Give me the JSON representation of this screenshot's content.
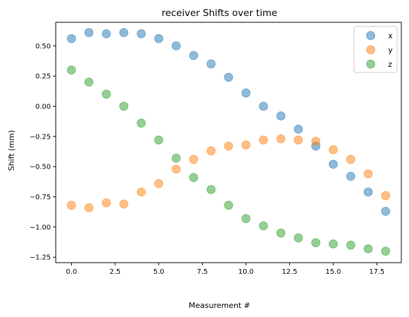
{
  "chart_data": {
    "type": "scatter",
    "title": "receiver Shifts over time",
    "xlabel": "Measurement #",
    "ylabel": "Shift (mm)",
    "xlim": [
      -0.9,
      18.9
    ],
    "ylim": [
      -1.295,
      0.695
    ],
    "xticks": [
      0,
      2.5,
      5,
      7.5,
      10,
      12.5,
      15,
      17.5
    ],
    "xtick_labels": [
      "0.0",
      "2.5",
      "5.0",
      "7.5",
      "10.0",
      "12.5",
      "15.0",
      "17.5"
    ],
    "yticks": [
      0.5,
      0.25,
      0,
      -0.25,
      -0.5,
      -0.75,
      -1.0,
      -1.25
    ],
    "ytick_labels": [
      "0.50",
      "0.25",
      "0.00",
      "−0.25",
      "−0.50",
      "−0.75",
      "−1.00",
      "−1.25"
    ],
    "grid": false,
    "legend_position": "top-right",
    "x": [
      0,
      1,
      2,
      3,
      4,
      5,
      6,
      7,
      8,
      9,
      10,
      11,
      12,
      13,
      14,
      15,
      16,
      17,
      18
    ],
    "series": [
      {
        "name": "x",
        "color": "#1f77b4",
        "values": [
          0.56,
          0.61,
          0.6,
          0.61,
          0.6,
          0.56,
          0.5,
          0.42,
          0.35,
          0.24,
          0.11,
          0.0,
          -0.08,
          -0.19,
          -0.33,
          -0.48,
          -0.58,
          -0.71,
          -0.87
        ]
      },
      {
        "name": "y",
        "color": "#ff7f0e",
        "values": [
          -0.82,
          -0.84,
          -0.8,
          -0.81,
          -0.71,
          -0.64,
          -0.52,
          -0.44,
          -0.37,
          -0.33,
          -0.32,
          -0.28,
          -0.27,
          -0.28,
          -0.29,
          -0.36,
          -0.44,
          -0.56,
          -0.74
        ]
      },
      {
        "name": "z",
        "color": "#2ca02c",
        "values": [
          0.3,
          0.2,
          0.1,
          0.0,
          -0.14,
          -0.28,
          -0.43,
          -0.59,
          -0.69,
          -0.82,
          -0.93,
          -0.99,
          -1.05,
          -1.09,
          -1.13,
          -1.14,
          -1.15,
          -1.18,
          -1.2
        ]
      }
    ]
  }
}
